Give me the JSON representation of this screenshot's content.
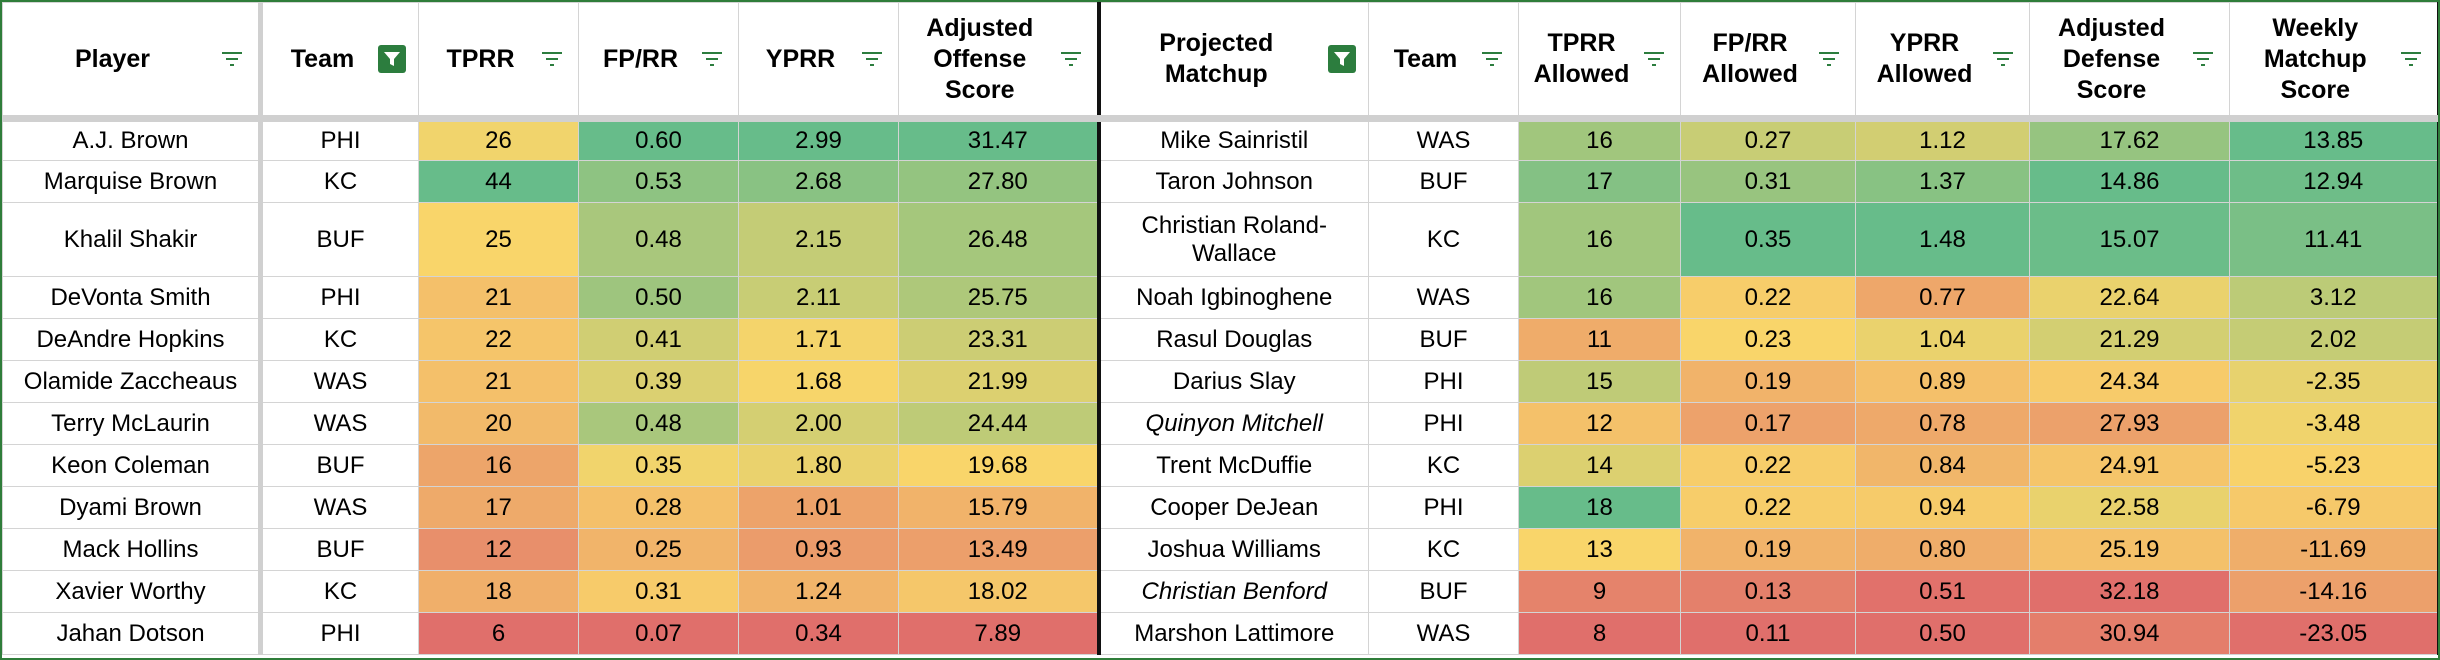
{
  "headers": {
    "player": "Player",
    "team": "Team",
    "tprr": "TPRR",
    "fprr": "FP/RR",
    "yprr": "YPRR",
    "adj_off": "Adjusted Offense Score",
    "matchup": "Projected Matchup",
    "team2": "Team",
    "tprr_allowed": "TPRR Allowed",
    "fprr_allowed": "FP/RR Allowed",
    "yprr_allowed": "YPRR Allowed",
    "adj_def": "Adjusted Defense Score",
    "weekly": "Weekly Matchup Score"
  },
  "filter_active": {
    "team": true,
    "matchup": true
  },
  "colors": {
    "filter_active_bg": "#2c7d3e",
    "filter_icon": "#2c7d3e",
    "scale_low": "#e06f6b",
    "scale_mid": "#f9d56a",
    "scale_high": "#67bc8a"
  },
  "rows": [
    {
      "player": "A.J. Brown",
      "team": "PHI",
      "tprr": "26",
      "fprr": "0.60",
      "yprr": "2.99",
      "adj_off": "31.47",
      "matchup": "Mike Sainristil",
      "matchup_italic": false,
      "team2": "WAS",
      "tprr_allowed": "16",
      "fprr_allowed": "0.27",
      "yprr_allowed": "1.12",
      "adj_def": "17.62",
      "weekly": "13.85"
    },
    {
      "player": "Marquise Brown",
      "team": "KC",
      "tprr": "44",
      "fprr": "0.53",
      "yprr": "2.68",
      "adj_off": "27.80",
      "matchup": "Taron Johnson",
      "matchup_italic": false,
      "team2": "BUF",
      "tprr_allowed": "17",
      "fprr_allowed": "0.31",
      "yprr_allowed": "1.37",
      "adj_def": "14.86",
      "weekly": "12.94"
    },
    {
      "player": "Khalil Shakir",
      "team": "BUF",
      "tprr": "25",
      "fprr": "0.48",
      "yprr": "2.15",
      "adj_off": "26.48",
      "matchup": "Christian Roland-Wallace",
      "matchup_italic": false,
      "team2": "KC",
      "tprr_allowed": "16",
      "fprr_allowed": "0.35",
      "yprr_allowed": "1.48",
      "adj_def": "15.07",
      "weekly": "11.41"
    },
    {
      "player": "DeVonta Smith",
      "team": "PHI",
      "tprr": "21",
      "fprr": "0.50",
      "yprr": "2.11",
      "adj_off": "25.75",
      "matchup": "Noah Igbinoghene",
      "matchup_italic": false,
      "team2": "WAS",
      "tprr_allowed": "16",
      "fprr_allowed": "0.22",
      "yprr_allowed": "0.77",
      "adj_def": "22.64",
      "weekly": "3.12"
    },
    {
      "player": "DeAndre Hopkins",
      "team": "KC",
      "tprr": "22",
      "fprr": "0.41",
      "yprr": "1.71",
      "adj_off": "23.31",
      "matchup": "Rasul Douglas",
      "matchup_italic": false,
      "team2": "BUF",
      "tprr_allowed": "11",
      "fprr_allowed": "0.23",
      "yprr_allowed": "1.04",
      "adj_def": "21.29",
      "weekly": "2.02"
    },
    {
      "player": "Olamide Zaccheaus",
      "team": "WAS",
      "tprr": "21",
      "fprr": "0.39",
      "yprr": "1.68",
      "adj_off": "21.99",
      "matchup": "Darius Slay",
      "matchup_italic": false,
      "team2": "PHI",
      "tprr_allowed": "15",
      "fprr_allowed": "0.19",
      "yprr_allowed": "0.89",
      "adj_def": "24.34",
      "weekly": "-2.35"
    },
    {
      "player": "Terry McLaurin",
      "team": "WAS",
      "tprr": "20",
      "fprr": "0.48",
      "yprr": "2.00",
      "adj_off": "24.44",
      "matchup": "Quinyon Mitchell",
      "matchup_italic": true,
      "team2": "PHI",
      "tprr_allowed": "12",
      "fprr_allowed": "0.17",
      "yprr_allowed": "0.78",
      "adj_def": "27.93",
      "weekly": "-3.48"
    },
    {
      "player": "Keon Coleman",
      "team": "BUF",
      "tprr": "16",
      "fprr": "0.35",
      "yprr": "1.80",
      "adj_off": "19.68",
      "matchup": "Trent McDuffie",
      "matchup_italic": false,
      "team2": "KC",
      "tprr_allowed": "14",
      "fprr_allowed": "0.22",
      "yprr_allowed": "0.84",
      "adj_def": "24.91",
      "weekly": "-5.23"
    },
    {
      "player": "Dyami Brown",
      "team": "WAS",
      "tprr": "17",
      "fprr": "0.28",
      "yprr": "1.01",
      "adj_off": "15.79",
      "matchup": "Cooper DeJean",
      "matchup_italic": false,
      "team2": "PHI",
      "tprr_allowed": "18",
      "fprr_allowed": "0.22",
      "yprr_allowed": "0.94",
      "adj_def": "22.58",
      "weekly": "-6.79"
    },
    {
      "player": "Mack Hollins",
      "team": "BUF",
      "tprr": "12",
      "fprr": "0.25",
      "yprr": "0.93",
      "adj_off": "13.49",
      "matchup": "Joshua Williams",
      "matchup_italic": false,
      "team2": "KC",
      "tprr_allowed": "13",
      "fprr_allowed": "0.19",
      "yprr_allowed": "0.80",
      "adj_def": "25.19",
      "weekly": "-11.69"
    },
    {
      "player": "Xavier Worthy",
      "team": "KC",
      "tprr": "18",
      "fprr": "0.31",
      "yprr": "1.24",
      "adj_off": "18.02",
      "matchup": "Christian Benford",
      "matchup_italic": true,
      "team2": "BUF",
      "tprr_allowed": "9",
      "fprr_allowed": "0.13",
      "yprr_allowed": "0.51",
      "adj_def": "32.18",
      "weekly": "-14.16"
    },
    {
      "player": "Jahan Dotson",
      "team": "PHI",
      "tprr": "6",
      "fprr": "0.07",
      "yprr": "0.34",
      "adj_off": "7.89",
      "matchup": "Marshon Lattimore",
      "matchup_italic": false,
      "team2": "WAS",
      "tprr_allowed": "8",
      "fprr_allowed": "0.11",
      "yprr_allowed": "0.50",
      "adj_def": "30.94",
      "weekly": "-23.05"
    }
  ]
}
